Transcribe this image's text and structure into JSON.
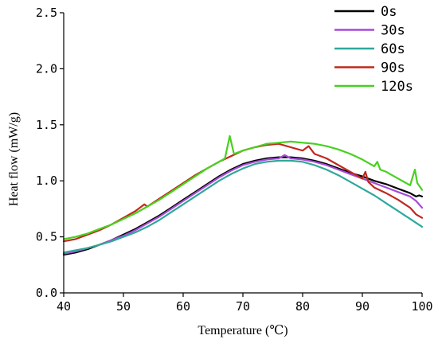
{
  "chart_data": {
    "type": "line",
    "title": "",
    "xlabel": "Temperature (℃)",
    "ylabel": "Heat flow (mW/g)",
    "xlim": [
      40,
      100
    ],
    "ylim": [
      0.0,
      2.5
    ],
    "x_ticks": [
      40,
      50,
      60,
      70,
      80,
      90,
      100
    ],
    "x_tick_labels": [
      "40",
      "50",
      "60",
      "70",
      "80",
      "90",
      "100"
    ],
    "y_ticks": [
      0.0,
      0.5,
      1.0,
      1.5,
      2.0,
      2.5
    ],
    "y_tick_labels": [
      "0.0",
      "0.5",
      "1.0",
      "1.5",
      "2.0",
      "2.5"
    ],
    "grid": false,
    "legend_position": "top-right",
    "series": [
      {
        "name": "0s",
        "color": "#000000",
        "x": [
          40,
          42,
          44,
          46,
          48,
          50,
          52,
          54,
          56,
          58,
          60,
          62,
          64,
          66,
          68,
          70,
          72,
          74,
          76,
          78,
          80,
          82,
          84,
          86,
          88,
          90,
          92,
          94,
          96,
          98,
          99,
          99.5,
          100
        ],
        "y": [
          0.34,
          0.36,
          0.39,
          0.43,
          0.47,
          0.52,
          0.57,
          0.63,
          0.69,
          0.76,
          0.83,
          0.9,
          0.97,
          1.04,
          1.1,
          1.15,
          1.18,
          1.2,
          1.21,
          1.21,
          1.2,
          1.18,
          1.15,
          1.11,
          1.07,
          1.04,
          1.0,
          0.97,
          0.93,
          0.89,
          0.86,
          0.87,
          0.86
        ]
      },
      {
        "name": "30s",
        "color": "#a64bd8",
        "x": [
          40,
          42,
          44,
          46,
          48,
          50,
          52,
          54,
          56,
          58,
          60,
          62,
          64,
          66,
          68,
          70,
          72,
          74,
          76,
          77,
          78,
          80,
          82,
          84,
          86,
          88,
          90,
          92,
          94,
          96,
          98,
          99,
          100
        ],
        "y": [
          0.35,
          0.37,
          0.4,
          0.43,
          0.47,
          0.51,
          0.56,
          0.62,
          0.68,
          0.75,
          0.82,
          0.89,
          0.96,
          1.03,
          1.09,
          1.14,
          1.17,
          1.19,
          1.2,
          1.23,
          1.2,
          1.19,
          1.17,
          1.14,
          1.1,
          1.06,
          1.02,
          0.98,
          0.94,
          0.9,
          0.86,
          0.82,
          0.76
        ]
      },
      {
        "name": "60s",
        "color": "#2ea89a",
        "x": [
          40,
          42,
          44,
          46,
          48,
          50,
          52,
          54,
          56,
          58,
          60,
          62,
          64,
          66,
          68,
          70,
          72,
          74,
          76,
          78,
          80,
          82,
          84,
          86,
          88,
          90,
          92,
          94,
          96,
          98,
          100
        ],
        "y": [
          0.36,
          0.38,
          0.4,
          0.43,
          0.46,
          0.5,
          0.54,
          0.59,
          0.65,
          0.72,
          0.79,
          0.86,
          0.93,
          1.0,
          1.06,
          1.11,
          1.15,
          1.17,
          1.18,
          1.18,
          1.17,
          1.14,
          1.1,
          1.05,
          0.99,
          0.93,
          0.87,
          0.8,
          0.73,
          0.66,
          0.59
        ]
      },
      {
        "name": "90s",
        "color": "#c0281e",
        "x": [
          40,
          42,
          44,
          46,
          48,
          50,
          52,
          53.5,
          54,
          56,
          58,
          60,
          62,
          64,
          66,
          68,
          70,
          72,
          74,
          76,
          78,
          80,
          81,
          82,
          84,
          86,
          88,
          90,
          90.5,
          91,
          92,
          94,
          96,
          98,
          99,
          100
        ],
        "y": [
          0.46,
          0.48,
          0.52,
          0.56,
          0.61,
          0.67,
          0.73,
          0.79,
          0.77,
          0.84,
          0.91,
          0.98,
          1.05,
          1.11,
          1.17,
          1.22,
          1.27,
          1.3,
          1.32,
          1.33,
          1.3,
          1.27,
          1.31,
          1.24,
          1.2,
          1.14,
          1.08,
          1.02,
          1.08,
          0.99,
          0.94,
          0.89,
          0.83,
          0.76,
          0.7,
          0.67
        ]
      },
      {
        "name": "120s",
        "color": "#47d11f",
        "x": [
          40,
          42,
          44,
          46,
          48,
          50,
          52,
          54,
          56,
          58,
          60,
          62,
          64,
          66,
          67,
          67.8,
          68.5,
          70,
          72,
          74,
          76,
          78,
          80,
          82,
          84,
          86,
          88,
          90,
          92,
          92.5,
          93,
          94,
          96,
          98,
          98.8,
          99.2,
          100
        ],
        "y": [
          0.48,
          0.5,
          0.53,
          0.57,
          0.61,
          0.66,
          0.71,
          0.77,
          0.83,
          0.9,
          0.97,
          1.04,
          1.11,
          1.17,
          1.2,
          1.4,
          1.24,
          1.27,
          1.3,
          1.33,
          1.34,
          1.35,
          1.34,
          1.33,
          1.31,
          1.28,
          1.24,
          1.19,
          1.13,
          1.17,
          1.1,
          1.08,
          1.02,
          0.96,
          1.1,
          0.98,
          0.92
        ]
      }
    ]
  }
}
